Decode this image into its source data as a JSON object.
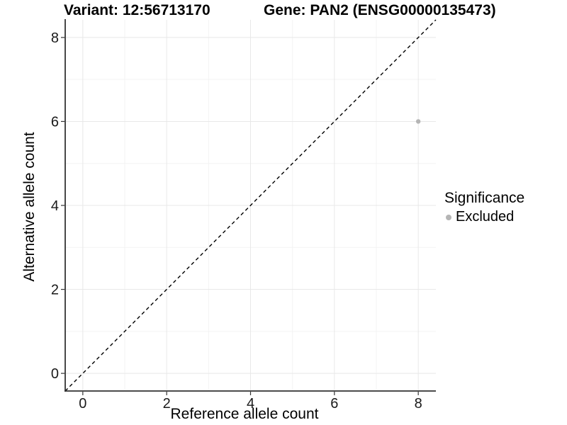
{
  "header": {
    "variant_title": "Variant: 12:56713170",
    "gene_title": "Gene: PAN2 (ENSG00000135473)"
  },
  "chart_data": {
    "type": "scatter",
    "title_left": "Variant: 12:56713170",
    "title_right": "Gene: PAN2 (ENSG00000135473)",
    "xlabel": "Reference allele count",
    "ylabel": "Alternative allele count",
    "xlim": [
      -0.42,
      8.42
    ],
    "ylim": [
      -0.42,
      8.42
    ],
    "x_ticks": [
      0,
      2,
      4,
      6,
      8
    ],
    "y_ticks": [
      0,
      2,
      4,
      6,
      8
    ],
    "x_minor_ticks": [
      1,
      3,
      5,
      7
    ],
    "y_minor_ticks": [
      1,
      3,
      5,
      7
    ],
    "grid": "major+minor",
    "reference_line": {
      "type": "identity y=x",
      "style": "dashed",
      "color": "#000000"
    },
    "legend": {
      "title": "Significance",
      "position": "right",
      "items": [
        {
          "label": "Excluded",
          "color": "#b5b5b5"
        }
      ]
    },
    "series": [
      {
        "name": "Excluded",
        "color": "#b5b5b5",
        "points": [
          {
            "x": 8,
            "y": 6
          }
        ]
      }
    ]
  },
  "style_colors": {
    "grid_major": "#e8e8e8",
    "grid_minor": "#f3f3f3",
    "axis_line": "#333333",
    "tick_label": "#1a1a1a",
    "point": "#b5b5b5"
  }
}
